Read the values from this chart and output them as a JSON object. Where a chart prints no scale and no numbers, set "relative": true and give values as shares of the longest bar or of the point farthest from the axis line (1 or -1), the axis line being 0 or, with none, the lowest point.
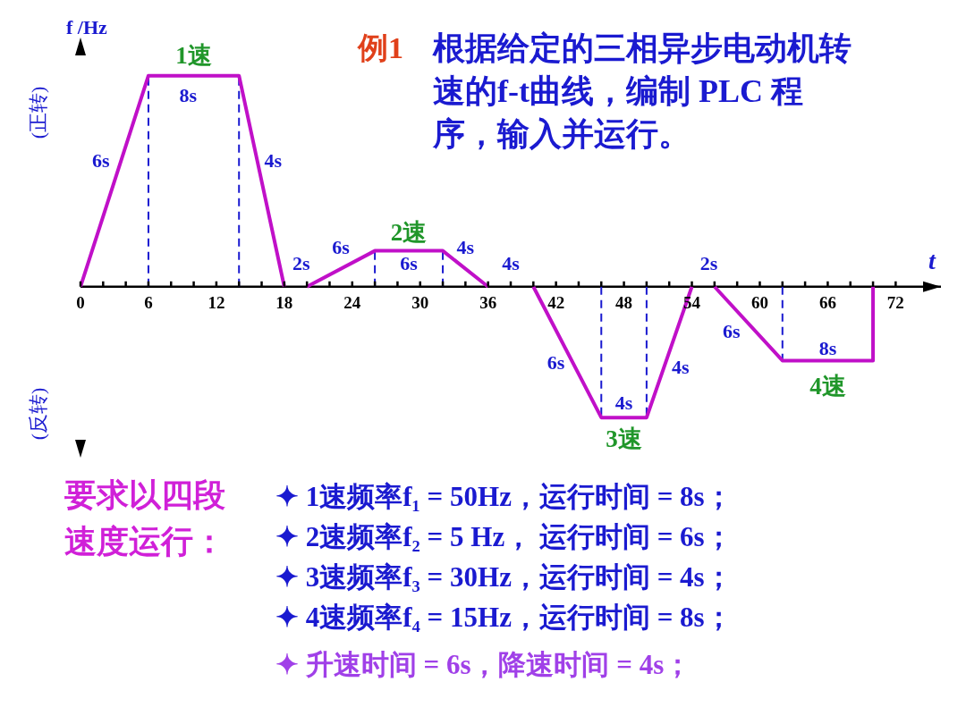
{
  "chart_data": {
    "type": "line",
    "relative": true,
    "title": "例1",
    "subtitle": "根据给定的三相异步电动机转速的f-t曲线，编制 PLC 程序，输入并运行。",
    "xlabel": "t",
    "ylabel": "f /Hz",
    "x": [
      0,
      6,
      14,
      18,
      19,
      20,
      26,
      32,
      36,
      38,
      40,
      46,
      50,
      54,
      55,
      56,
      62,
      70,
      70
    ],
    "series": [
      {
        "color": "#c010c8",
        "values": [
          0,
          1,
          1,
          0,
          null,
          0,
          0.17,
          0.17,
          0,
          null,
          0,
          -0.62,
          -0.62,
          0,
          null,
          0,
          -0.35,
          -0.35,
          0
        ]
      }
    ],
    "marker": "none",
    "line_style": "solid",
    "xlim": [
      0,
      76
    ],
    "xticks": [
      0,
      {
        "value": 2,
        "label": null
      },
      {
        "value": 4,
        "label": null
      },
      6,
      {
        "value": 8,
        "label": null
      },
      {
        "value": 10,
        "label": null
      },
      12,
      {
        "value": 14,
        "label": null
      },
      {
        "value": 16,
        "label": null
      },
      18,
      {
        "value": 20,
        "label": null
      },
      {
        "value": 22,
        "label": null
      },
      24,
      {
        "value": 26,
        "label": null
      },
      {
        "value": 28,
        "label": null
      },
      30,
      {
        "value": 32,
        "label": null
      },
      {
        "value": 34,
        "label": null
      },
      36,
      {
        "value": 38,
        "label": null
      },
      {
        "value": 40,
        "label": null
      },
      42,
      {
        "value": 44,
        "label": null
      },
      {
        "value": 46,
        "label": null
      },
      48,
      {
        "value": 50,
        "label": null
      },
      {
        "value": 52,
        "label": null
      },
      54,
      {
        "value": 56,
        "label": null
      },
      {
        "value": 58,
        "label": null
      },
      60,
      {
        "value": 62,
        "label": null
      },
      {
        "value": 64,
        "label": null
      },
      66,
      {
        "value": 68,
        "label": null
      },
      {
        "value": 70,
        "label": null
      },
      72
    ],
    "ref_lines": [
      {
        "axis": "x",
        "value": 6,
        "color": "#1a1ad0",
        "line_style": "dashed"
      },
      {
        "axis": "x",
        "value": 14,
        "color": "#1a1ad0",
        "line_style": "dashed"
      },
      {
        "axis": "x",
        "value": 26,
        "color": "#1a1ad0",
        "line_style": "dashed"
      },
      {
        "axis": "x",
        "value": 32,
        "color": "#1a1ad0",
        "line_style": "dashed"
      },
      {
        "axis": "x",
        "value": 46,
        "color": "#1a1ad0",
        "line_style": "dashed"
      },
      {
        "axis": "x",
        "value": 50,
        "color": "#1a1ad0",
        "line_style": "dashed"
      },
      {
        "axis": "x",
        "value": 62,
        "color": "#1a1ad0",
        "line_style": "dashed"
      }
    ],
    "annotations": [
      "(正转)",
      "(反转)",
      "要求以四段速度运行：",
      "✦ 1速频率f₁ = 50Hz，运行时间 = 8s；",
      "✦ 2速频率f₂ = 5 Hz， 运行时间 = 6s；",
      "✦ 3速频率f₃ = 30Hz，运行时间 = 4s；",
      "✦ 4速频率f₄ = 15Hz，运行时间 = 8s；",
      "✦ 升速时间 = 6s，降速时间 = 4s；",
      "1速",
      "8s",
      "6s",
      "4s",
      "2s",
      "6s",
      "2速",
      "6s",
      "4s",
      "4s",
      "6s",
      "4s",
      "3速",
      "4s",
      "2s",
      "6s",
      "8s",
      "4速"
    ]
  }
}
